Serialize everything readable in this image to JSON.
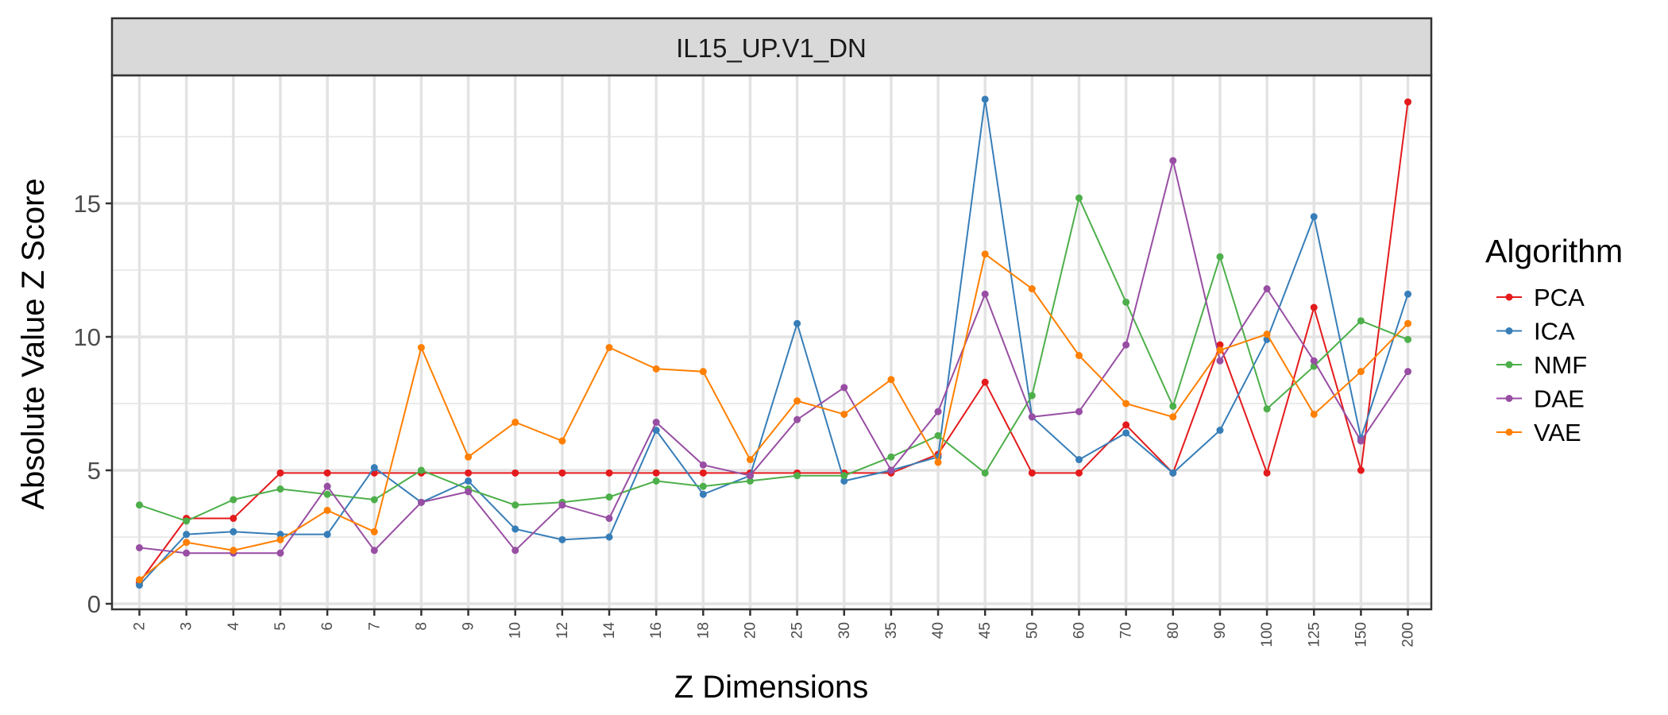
{
  "chart_data": {
    "type": "line",
    "facet_title": "IL15_UP.V1_DN",
    "xlabel": "Z Dimensions",
    "ylabel": "Absolute Value Z Score",
    "ylim": [
      0,
      19
    ],
    "yticks": [
      0,
      5,
      10,
      15
    ],
    "grid": true,
    "legend_title": "Algorithm",
    "legend_position": "right",
    "categories": [
      "2",
      "3",
      "4",
      "5",
      "6",
      "7",
      "8",
      "9",
      "10",
      "12",
      "14",
      "16",
      "18",
      "20",
      "25",
      "30",
      "35",
      "40",
      "45",
      "50",
      "60",
      "70",
      "80",
      "90",
      "100",
      "125",
      "150",
      "200"
    ],
    "series": [
      {
        "name": "PCA",
        "color": "#e41a1c",
        "values": [
          0.8,
          3.2,
          3.2,
          4.9,
          4.9,
          4.9,
          4.9,
          4.9,
          4.9,
          4.9,
          4.9,
          4.9,
          4.9,
          4.9,
          4.9,
          4.9,
          4.9,
          5.6,
          8.3,
          4.9,
          4.9,
          6.7,
          4.9,
          9.7,
          4.9,
          11.1,
          5.0,
          18.8
        ]
      },
      {
        "name": "ICA",
        "color": "#377eb8",
        "values": [
          0.7,
          2.6,
          2.7,
          2.6,
          2.6,
          5.1,
          3.8,
          4.6,
          2.8,
          2.4,
          2.5,
          6.5,
          4.1,
          4.8,
          10.5,
          4.6,
          5.0,
          5.5,
          18.9,
          7.0,
          5.4,
          6.4,
          4.9,
          6.5,
          9.9,
          14.5,
          6.2,
          11.6
        ]
      },
      {
        "name": "NMF",
        "color": "#4daf4a",
        "values": [
          3.7,
          3.1,
          3.9,
          4.3,
          4.1,
          3.9,
          5.0,
          4.3,
          3.7,
          3.8,
          4.0,
          4.6,
          4.4,
          4.6,
          4.8,
          4.8,
          5.5,
          6.3,
          4.9,
          7.8,
          15.2,
          11.3,
          7.4,
          13.0,
          7.3,
          8.9,
          10.6,
          9.9
        ]
      },
      {
        "name": "DAE",
        "color": "#984ea3",
        "values": [
          2.1,
          1.9,
          1.9,
          1.9,
          4.4,
          2.0,
          3.8,
          4.2,
          2.0,
          3.7,
          3.2,
          6.8,
          5.2,
          4.8,
          6.9,
          8.1,
          5.0,
          7.2,
          11.6,
          7.0,
          7.2,
          9.7,
          16.6,
          9.1,
          11.8,
          9.1,
          6.1,
          8.7
        ]
      },
      {
        "name": "VAE",
        "color": "#ff7f00",
        "values": [
          0.9,
          2.3,
          2.0,
          2.4,
          3.5,
          2.7,
          9.6,
          5.5,
          6.8,
          6.1,
          9.6,
          8.8,
          8.7,
          5.4,
          7.6,
          7.1,
          8.4,
          5.3,
          13.1,
          11.8,
          9.3,
          7.5,
          7.0,
          9.5,
          10.1,
          7.1,
          8.7,
          10.5
        ]
      }
    ]
  }
}
